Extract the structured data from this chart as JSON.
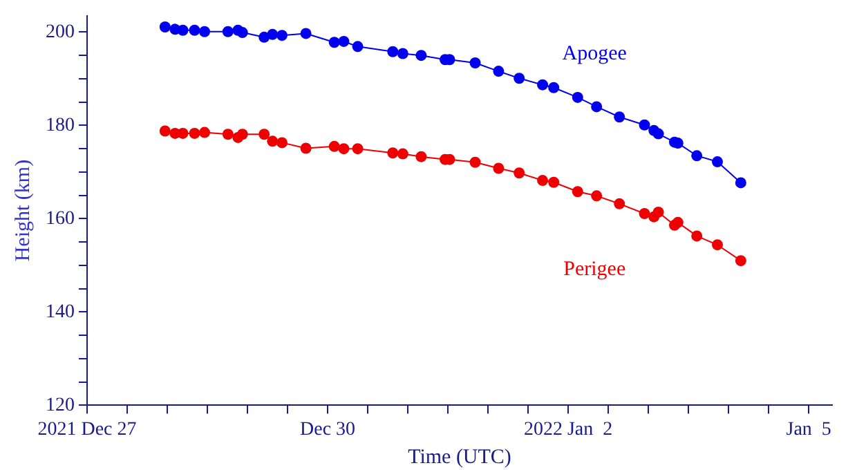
{
  "chart_data": {
    "type": "line",
    "xlabel": "Time (UTC)",
    "ylabel": "Height (km)",
    "legend": false,
    "grid": false,
    "marker": "circle",
    "line_style": "solid",
    "x": [
      "2021-12-27T23:20",
      "2021-12-28T02:20",
      "2021-12-28T04:40",
      "2021-12-28T08:10",
      "2021-12-28T11:10",
      "2021-12-28T18:10",
      "2021-12-28T21:10",
      "2021-12-28T22:30",
      "2021-12-29T05:00",
      "2021-12-29T07:30",
      "2021-12-29T10:20",
      "2021-12-29T17:30",
      "2021-12-30T02:00",
      "2021-12-30T04:50",
      "2021-12-30T09:00",
      "2021-12-30T19:30",
      "2021-12-30T22:30",
      "2021-12-31T04:00",
      "2021-12-31T11:10",
      "2021-12-31T12:30",
      "2021-12-31T20:10",
      "2022-01-01T03:10",
      "2022-01-01T09:20",
      "2022-01-01T16:20",
      "2022-01-01T19:40",
      "2022-01-02T02:50",
      "2022-01-02T08:30",
      "2022-01-02T15:20",
      "2022-01-02T22:50",
      "2022-01-03T01:40",
      "2022-01-03T03:00",
      "2022-01-03T07:50",
      "2022-01-03T08:50",
      "2022-01-03T14:30",
      "2022-01-03T20:40",
      "2022-01-04T03:40"
    ],
    "series": [
      {
        "name": "Apogee",
        "color": "#0000ee",
        "values": [
          201.1,
          200.6,
          200.4,
          200.4,
          200.1,
          200.1,
          200.4,
          199.9,
          198.9,
          199.5,
          199.3,
          199.7,
          197.8,
          198.0,
          196.9,
          195.8,
          195.4,
          195.0,
          194.1,
          194.1,
          193.4,
          191.6,
          190.1,
          188.7,
          188.1,
          186.0,
          184.0,
          181.8,
          180.1,
          178.9,
          178.2,
          176.4,
          176.2,
          173.5,
          172.2,
          167.7
        ]
      },
      {
        "name": "Perigee",
        "color": "#ee0000",
        "values": [
          178.8,
          178.3,
          178.3,
          178.3,
          178.5,
          178.1,
          177.4,
          178.1,
          178.1,
          176.6,
          176.3,
          175.1,
          175.5,
          175.0,
          175.0,
          174.1,
          173.9,
          173.3,
          172.7,
          172.7,
          172.1,
          170.8,
          169.8,
          168.2,
          167.8,
          165.8,
          164.9,
          163.2,
          161.1,
          160.4,
          161.4,
          158.6,
          159.2,
          156.3,
          154.4,
          151.0
        ]
      }
    ],
    "xlim": [
      "2021-12-27",
      "2022-01-05T07:00"
    ],
    "xticks": [
      {
        "value": "2021-12-27",
        "label": "2021 Dec 27"
      },
      {
        "value": "2021-12-27T12:00",
        "label": null
      },
      {
        "value": "2021-12-28",
        "label": null
      },
      {
        "value": "2021-12-28T12:00",
        "label": null
      },
      {
        "value": "2021-12-29",
        "label": null
      },
      {
        "value": "2021-12-29T12:00",
        "label": null
      },
      {
        "value": "2021-12-30",
        "label": "Dec 30"
      },
      {
        "value": "2021-12-30T12:00",
        "label": null
      },
      {
        "value": "2021-12-31",
        "label": null
      },
      {
        "value": "2021-12-31T12:00",
        "label": null
      },
      {
        "value": "2022-01-01",
        "label": null
      },
      {
        "value": "2022-01-01T12:00",
        "label": null
      },
      {
        "value": "2022-01-02",
        "label": "2022 Jan  2"
      },
      {
        "value": "2022-01-02T12:00",
        "label": null
      },
      {
        "value": "2022-01-03",
        "label": null
      },
      {
        "value": "2022-01-03T12:00",
        "label": null
      },
      {
        "value": "2022-01-04",
        "label": null
      },
      {
        "value": "2022-01-04T12:00",
        "label": null
      },
      {
        "value": "2022-01-05",
        "label": "Jan  5"
      }
    ],
    "ylim": [
      120,
      203.5
    ],
    "yticks": [
      120,
      {
        "value": 125,
        "label": null
      },
      {
        "value": 130,
        "label": null
      },
      {
        "value": 135,
        "label": null
      },
      140,
      {
        "value": 145,
        "label": null
      },
      {
        "value": 150,
        "label": null
      },
      {
        "value": 155,
        "label": null
      },
      160,
      {
        "value": 165,
        "label": null
      },
      {
        "value": 170,
        "label": null
      },
      {
        "value": 175,
        "label": null
      },
      180,
      {
        "value": 185,
        "label": null
      },
      {
        "value": 190,
        "label": null
      },
      {
        "value": 195,
        "label": null
      },
      200
    ]
  }
}
